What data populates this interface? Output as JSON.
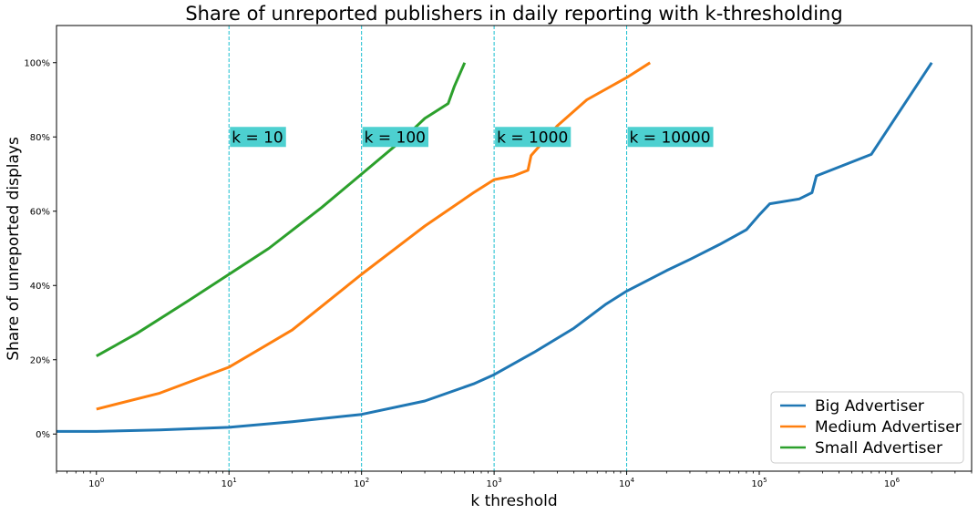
{
  "chart_data": {
    "type": "line",
    "title": "Share of unreported publishers in daily reporting with k-thresholding",
    "xlabel": "k threshold",
    "ylabel": "Share of unreported displays",
    "xscale": "log",
    "xlim": [
      0.5,
      4000000
    ],
    "ylim": [
      -10,
      110
    ],
    "x_ticks": [
      {
        "value": 1,
        "base": "10",
        "exp": "0"
      },
      {
        "value": 10,
        "base": "10",
        "exp": "1"
      },
      {
        "value": 100,
        "base": "10",
        "exp": "2"
      },
      {
        "value": 1000,
        "base": "10",
        "exp": "3"
      },
      {
        "value": 10000,
        "base": "10",
        "exp": "4"
      },
      {
        "value": 100000,
        "base": "10",
        "exp": "5"
      },
      {
        "value": 1000000,
        "base": "10",
        "exp": "6"
      }
    ],
    "y_ticks": [
      {
        "value": 0,
        "label": "0%"
      },
      {
        "value": 20,
        "label": "20%"
      },
      {
        "value": 40,
        "label": "40%"
      },
      {
        "value": 60,
        "label": "60%"
      },
      {
        "value": 80,
        "label": "80%"
      },
      {
        "value": 100,
        "label": "100%"
      }
    ],
    "grid": false,
    "legend_position": "lower-right",
    "vlines": [
      {
        "x": 10,
        "label": "k = 10",
        "color": "#17becf"
      },
      {
        "x": 100,
        "label": "k = 100",
        "color": "#17becf"
      },
      {
        "x": 1000,
        "label": "k = 1000",
        "color": "#17becf"
      },
      {
        "x": 10000,
        "label": "k = 10000",
        "color": "#17becf"
      }
    ],
    "annotation_bg": "#4dd0d0",
    "annotation_y": 80,
    "series": [
      {
        "name": "Big Advertiser",
        "color": "#1f77b4",
        "x": [
          0.5,
          1,
          3,
          10,
          30,
          100,
          300,
          700,
          1000,
          2000,
          4000,
          7000,
          10000,
          20000,
          30000,
          50000,
          80000,
          100000,
          120000,
          200000,
          250000,
          270000,
          700000,
          2000000
        ],
        "y": [
          0.7,
          0.7,
          1.1,
          1.8,
          3.3,
          5.3,
          8.9,
          13.5,
          16,
          22,
          28.5,
          35,
          38.5,
          44,
          47,
          51,
          55,
          59,
          62,
          63.3,
          65,
          69.5,
          75.3,
          100
        ]
      },
      {
        "name": "Medium Advertiser",
        "color": "#ff7f0e",
        "x": [
          1,
          3,
          10,
          30,
          100,
          300,
          700,
          1000,
          1400,
          1800,
          1900,
          3000,
          5000,
          10000,
          15000
        ],
        "y": [
          6.7,
          11,
          18,
          28,
          43,
          56,
          65,
          68.5,
          69.5,
          71,
          75,
          83,
          90,
          96,
          100
        ]
      },
      {
        "name": "Small Advertiser",
        "color": "#2ca02c",
        "x": [
          1,
          2,
          5,
          10,
          20,
          50,
          100,
          200,
          300,
          450,
          500,
          600
        ],
        "y": [
          21,
          27,
          36,
          43,
          50,
          61,
          70,
          79,
          85,
          89,
          93.5,
          100
        ]
      }
    ]
  }
}
